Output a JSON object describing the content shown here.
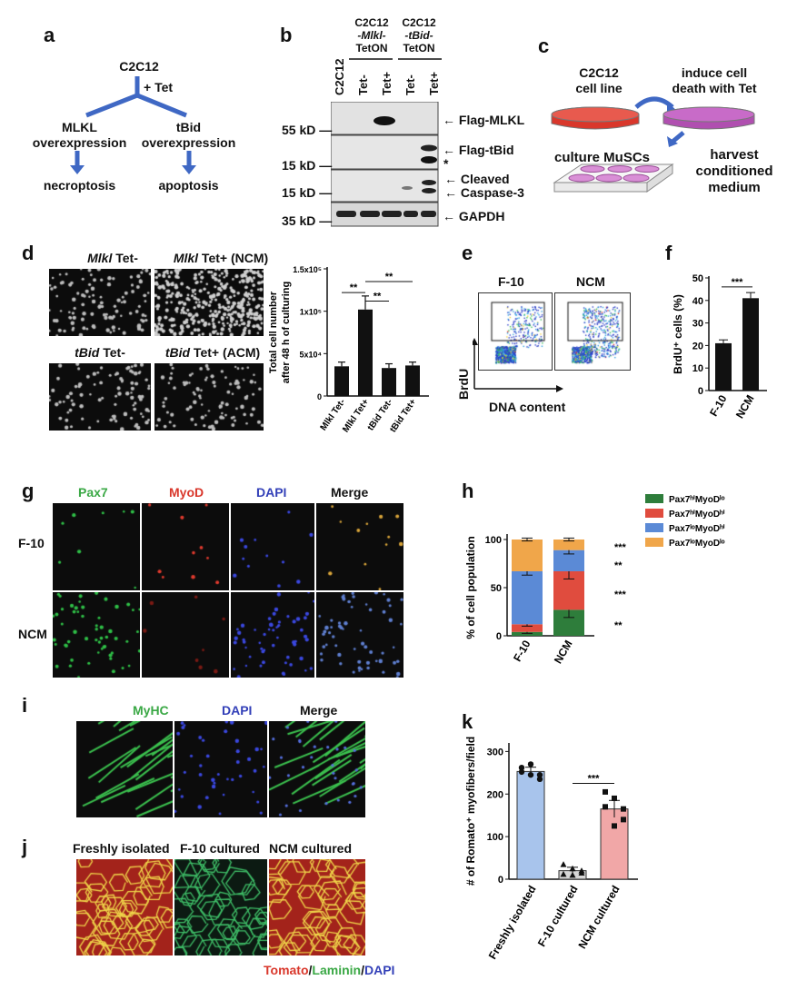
{
  "panels": {
    "a": {
      "label": "a",
      "root": "C2C12",
      "treatment": "+ Tet",
      "left_node": [
        "MLKL",
        "overexpression"
      ],
      "right_node": [
        "tBid",
        "overexpression"
      ],
      "left_outcome": "necroptosis",
      "right_outcome": "apoptosis"
    },
    "b": {
      "label": "b",
      "group_mlkl": [
        "C2C12",
        "-Mlkl-",
        "TetON"
      ],
      "group_tbid": [
        "C2C12",
        "-tBid-",
        "TetON"
      ],
      "lanes": [
        "C2C12",
        "Tet-",
        "Tet+",
        "Tet-",
        "Tet+"
      ],
      "markers": [
        "55 kD",
        "15 kD",
        "15 kD",
        "35 kD"
      ],
      "bands": [
        "← Flag-MLKL",
        "← Flag-tBid",
        "*",
        "Cleaved",
        "Caspase-3",
        "← GAPDH"
      ]
    },
    "c": {
      "label": "c",
      "cell_line": [
        "C2C12",
        "cell line"
      ],
      "induce": [
        "induce cell",
        "death with Tet"
      ],
      "culture": "culture MuSCs",
      "harvest": [
        "harvest",
        "conditioned",
        "medium"
      ],
      "colors": {
        "red_dish": "#d9372b",
        "purple_dish": "#b04fb0",
        "plate": "#d98fd6"
      }
    },
    "d": {
      "label": "d",
      "images": [
        "Mlkl Tet-",
        "Mlkl Tet+ (NCM)",
        "tBid Tet-",
        "tBid Tet+ (ACM)"
      ],
      "image_gene": [
        "Mlkl",
        "Mlkl",
        "tBid",
        "tBid"
      ],
      "image_suffix": [
        " Tet-",
        " Tet+ (NCM)",
        " Tet-",
        " Tet+ (ACM)"
      ],
      "ylabel": [
        "Total cell number",
        "after 48 h of culturing"
      ],
      "sig": [
        "**",
        "**",
        "**"
      ]
    },
    "e": {
      "label": "e",
      "gates": [
        "F-10",
        "NCM"
      ],
      "ylabel": "BrdU",
      "xlabel": "DNA content"
    },
    "f": {
      "label": "f",
      "ylabel": "BrdU⁺ cells (%)",
      "sig": "***"
    },
    "g": {
      "label": "g",
      "channels": [
        "Pax7",
        "MyoD",
        "DAPI",
        "Merge"
      ],
      "rows": [
        "F-10",
        "NCM"
      ],
      "channel_colors": [
        "#3aa845",
        "#d9372b",
        "#3340b8",
        "#111111"
      ]
    },
    "h": {
      "label": "h",
      "ylabel": "% of cell population",
      "sig": [
        "***",
        "**",
        "***",
        "**"
      ]
    },
    "i": {
      "label": "i",
      "channels": [
        "MyHC",
        "DAPI",
        "Merge"
      ],
      "channel_colors": [
        "#3aa845",
        "#3340b8",
        "#111111"
      ]
    },
    "j": {
      "label": "j",
      "titles": [
        "Freshly isolated",
        "F-10 cultured",
        "NCM cultured"
      ],
      "stain": [
        "Tomato",
        "/",
        "Laminin",
        "/",
        "DAPI"
      ],
      "stain_colors": [
        "#d9372b",
        "#111111",
        "#3aa845",
        "#111111",
        "#3340b8"
      ]
    },
    "k": {
      "label": "k",
      "ylabel": "# of Romato⁺ myofibers/field",
      "sig": "***"
    }
  },
  "chart_data": [
    {
      "panel": "d",
      "type": "bar",
      "categories": [
        "Mlkl Tet-",
        "Mlkl Tet+",
        "tBid Tet-",
        "tBid Tet+"
      ],
      "values": [
        35000,
        102000,
        33000,
        36000
      ],
      "errors": [
        5000,
        16000,
        5000,
        4000
      ],
      "ylim": [
        0,
        150000
      ],
      "yticks": [
        "0",
        "5x10⁴",
        "1x10⁵",
        "1.5x10⁵"
      ],
      "ylabel": "Total cell number after 48 h of culturing",
      "xlabel": "",
      "color": "#111111"
    },
    {
      "panel": "f",
      "type": "bar",
      "categories": [
        "F-10",
        "NCM"
      ],
      "values": [
        21,
        41
      ],
      "errors": [
        1.5,
        2.5
      ],
      "ylim": [
        0,
        50
      ],
      "yticks": [
        "0",
        "10",
        "20",
        "30",
        "40",
        "50"
      ],
      "ylabel": "BrdU⁺ cells (%)",
      "color": "#111111"
    },
    {
      "panel": "h",
      "type": "bar",
      "stacked": true,
      "categories": [
        "F-10",
        "NCM"
      ],
      "ylim": [
        0,
        100
      ],
      "yticks": [
        "0",
        "50",
        "100"
      ],
      "ylabel": "% of cell population",
      "series": [
        {
          "name": "Pax7ʰⁱMyoDˡᵒ",
          "color": "#2e7d3b",
          "values": [
            4,
            27
          ],
          "errors": [
            1.5,
            8
          ]
        },
        {
          "name": "Pax7ʰⁱMyoDʰⁱ",
          "color": "#e04c3e",
          "values": [
            8,
            40
          ],
          "errors": [
            2,
            8
          ]
        },
        {
          "name": "Pax7ˡᵒMyoDʰⁱ",
          "color": "#5b8ad6",
          "values": [
            55,
            22
          ],
          "errors": [
            4,
            4
          ]
        },
        {
          "name": "Pax7ˡᵒMyoDˡᵒ",
          "color": "#f0a64a",
          "values": [
            33,
            11
          ],
          "errors": [
            1.5,
            1.5
          ]
        }
      ]
    },
    {
      "panel": "k",
      "type": "bar",
      "categories": [
        "Freshly isolated",
        "F-10 cultured",
        "NCM cultured"
      ],
      "values": [
        253,
        20,
        165
      ],
      "errors": [
        10,
        8,
        20
      ],
      "colors": [
        "#a8c4ec",
        "#d7d7d7",
        "#f1a7a7"
      ],
      "points": [
        [
          262,
          270,
          235,
          252,
          245,
          245
        ],
        [
          35,
          25,
          15,
          12,
          10,
          20
        ],
        [
          205,
          190,
          165,
          170,
          125,
          140
        ]
      ],
      "ylim": [
        0,
        320
      ],
      "yticks": [
        "0",
        "100",
        "200",
        "300"
      ],
      "ylabel": "# of Romato⁺ myofibers/field"
    }
  ]
}
